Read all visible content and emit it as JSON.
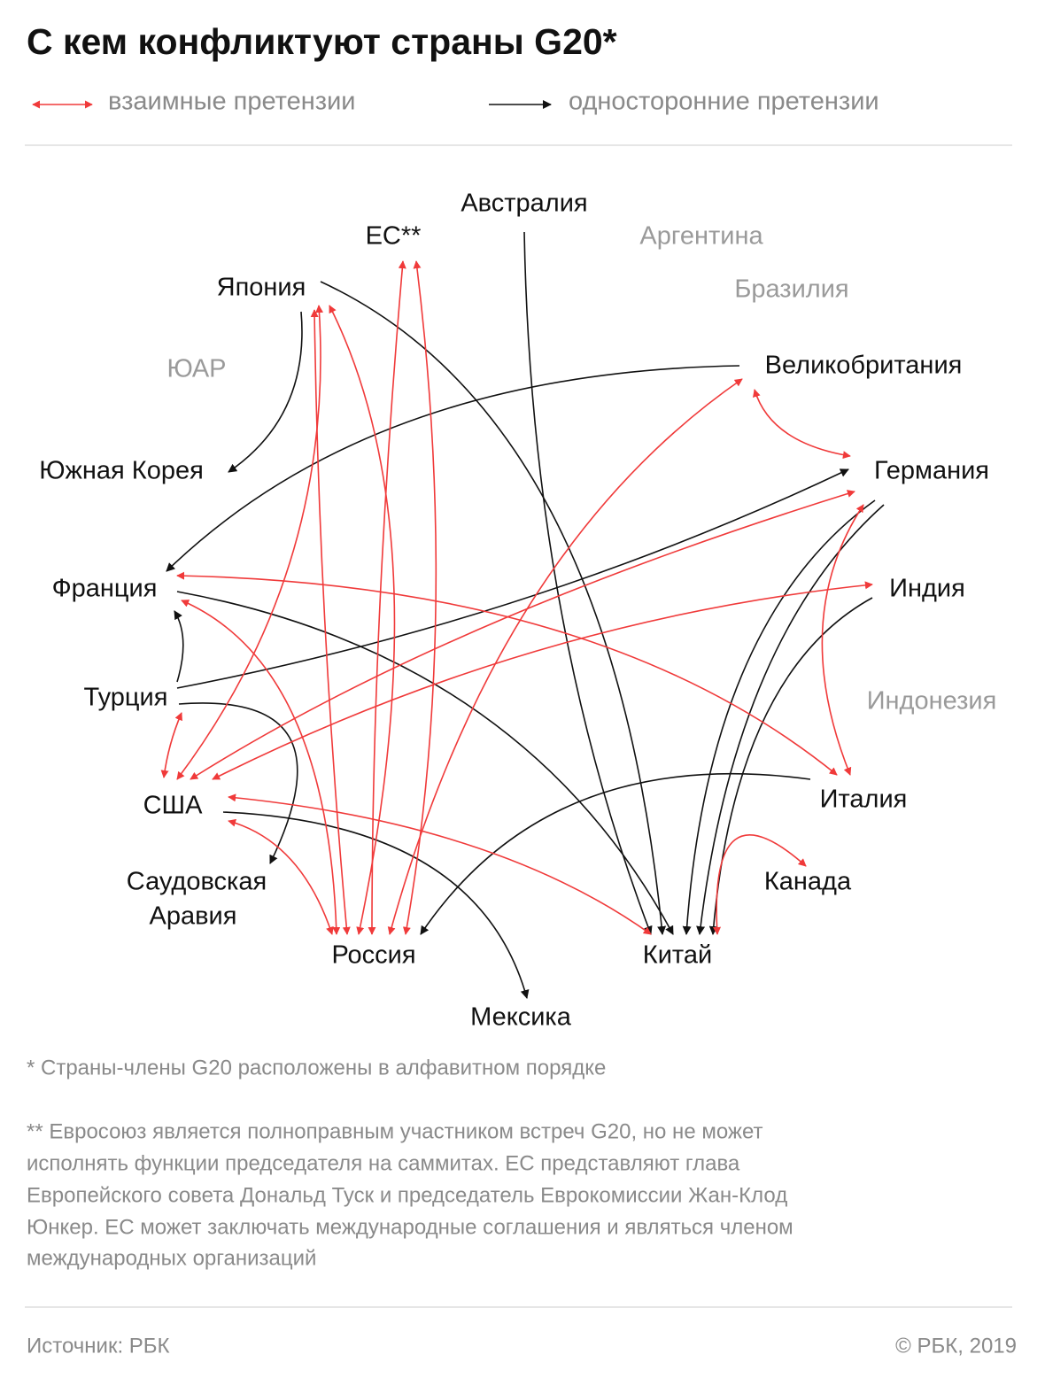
{
  "title": "С кем конфликтуют страны G20*",
  "legend": [
    {
      "label": "взаимные претензии"
    },
    {
      "label": "односторонние претензии"
    }
  ],
  "nodes": [
    {
      "label": "Австралия"
    },
    {
      "label": "ЕС**"
    },
    {
      "label": "Аргентина"
    },
    {
      "label": "Япония"
    },
    {
      "label": "Бразилия"
    },
    {
      "label": "ЮАР"
    },
    {
      "label": "Великобритания"
    },
    {
      "label": "Южная Корея"
    },
    {
      "label": "Германия"
    },
    {
      "label": "Франция"
    },
    {
      "label": "Индия"
    },
    {
      "label": "Турция"
    },
    {
      "label": "Индонезия"
    },
    {
      "label": "США"
    },
    {
      "label": "Италия"
    },
    {
      "label": [
        "Саудовская",
        "Аравия"
      ]
    },
    {
      "label": "Канада"
    },
    {
      "label": "Россия"
    },
    {
      "label": "Китай"
    },
    {
      "label": "Мексика"
    }
  ],
  "footnote_1": "* Страны-члены G20 расположены в алфавитном порядке",
  "footnote_2": [
    "** Евросоюз является полноправным участником встреч G20, но не может",
    "исполнять функции председателя на саммитах. ЕС представляют глава",
    "Европейского совета Дональд Туск и председатель Еврокомиссии Жан-Клод",
    "Юнкер. ЕС может заключать международные соглашения и являться членом",
    "международных организаций"
  ],
  "source": "Источник: РБК",
  "copyright": "© РБК, 2019"
}
